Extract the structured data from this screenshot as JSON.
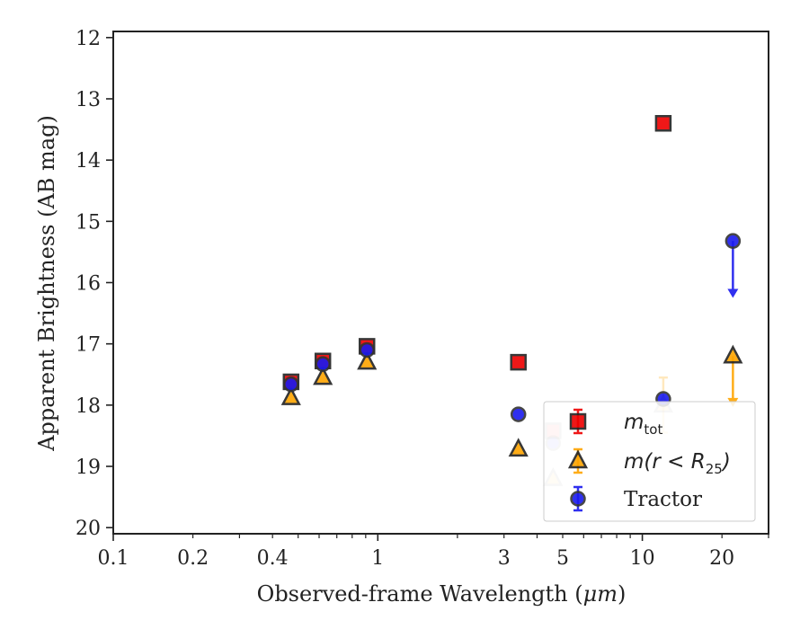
{
  "chart_data": {
    "type": "scatter",
    "xlabel_prefix": "Observed-frame Wavelength (",
    "xlabel_unit": "μm",
    "xlabel_suffix": ")",
    "ylabel": "Apparent Brightness (AB mag)",
    "x_scale": "log",
    "xlim": [
      0.1,
      30
    ],
    "ylim": [
      20.1,
      11.9
    ],
    "y_inverted": true,
    "grid": false,
    "legend_position": "bottom-right",
    "x_ticks": [
      {
        "value": 0.1,
        "label": "0.1"
      },
      {
        "value": 0.2,
        "label": "0.2"
      },
      {
        "value": 0.4,
        "label": "0.4"
      },
      {
        "value": 1,
        "label": "1"
      },
      {
        "value": 3,
        "label": "3"
      },
      {
        "value": 5,
        "label": "5"
      },
      {
        "value": 10,
        "label": "10"
      },
      {
        "value": 20,
        "label": "20"
      }
    ],
    "y_ticks": [
      {
        "value": 12,
        "label": "12"
      },
      {
        "value": 13,
        "label": "13"
      },
      {
        "value": 14,
        "label": "14"
      },
      {
        "value": 15,
        "label": "15"
      },
      {
        "value": 16,
        "label": "16"
      },
      {
        "value": 17,
        "label": "17"
      },
      {
        "value": 18,
        "label": "18"
      },
      {
        "value": 19,
        "label": "19"
      },
      {
        "value": 20,
        "label": "20"
      }
    ],
    "series": [
      {
        "name": "m_tot",
        "label_main": "m",
        "label_sub": "tot",
        "marker": "square",
        "color": "#ee0000",
        "points": [
          {
            "x": 0.47,
            "y": 17.62
          },
          {
            "x": 0.62,
            "y": 17.28
          },
          {
            "x": 0.91,
            "y": 17.04
          },
          {
            "x": 3.4,
            "y": 17.3
          },
          {
            "x": 4.6,
            "y": 18.42,
            "faded": true
          },
          {
            "x": 12.0,
            "y": 13.4
          }
        ]
      },
      {
        "name": "m(r < R25)",
        "label_main": "m(r < R",
        "label_sub": "25",
        "label_end": ")",
        "marker": "triangle",
        "color": "#ffa500",
        "points": [
          {
            "x": 0.47,
            "y": 17.88
          },
          {
            "x": 0.62,
            "y": 17.55
          },
          {
            "x": 0.91,
            "y": 17.3
          },
          {
            "x": 3.4,
            "y": 18.72
          },
          {
            "x": 4.6,
            "y": 19.2,
            "faded": true
          },
          {
            "x": 12.0,
            "y": 18.0,
            "err_top": 17.55,
            "err_bottom": 18.45,
            "faded": true
          },
          {
            "x": 22.0,
            "y": 17.2,
            "upper_limit_to": 18.0
          }
        ]
      },
      {
        "name": "Tractor",
        "label_main": "Tractor",
        "marker": "circle",
        "color": "#1a1aee",
        "points": [
          {
            "x": 0.47,
            "y": 17.66
          },
          {
            "x": 0.62,
            "y": 17.33
          },
          {
            "x": 0.91,
            "y": 17.1
          },
          {
            "x": 3.4,
            "y": 18.15
          },
          {
            "x": 4.6,
            "y": 18.62,
            "faded": true
          },
          {
            "x": 12.0,
            "y": 17.9
          },
          {
            "x": 22.0,
            "y": 15.32,
            "upper_limit_to": 16.22
          }
        ]
      }
    ]
  }
}
